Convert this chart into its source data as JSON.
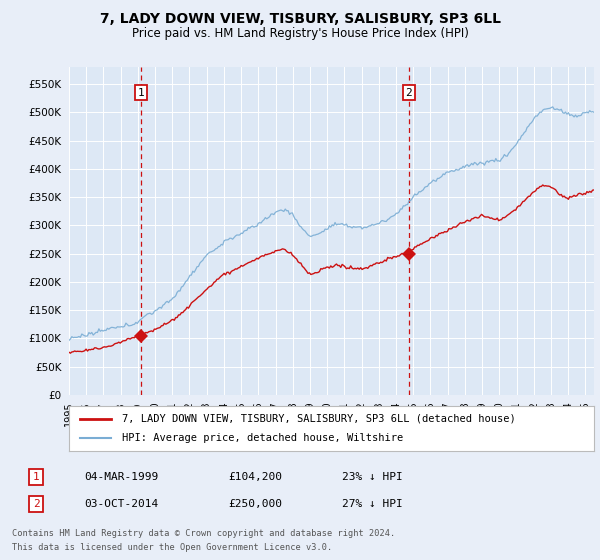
{
  "title": "7, LADY DOWN VIEW, TISBURY, SALISBURY, SP3 6LL",
  "subtitle": "Price paid vs. HM Land Registry's House Price Index (HPI)",
  "legend_line1": "7, LADY DOWN VIEW, TISBURY, SALISBURY, SP3 6LL (detached house)",
  "legend_line2": "HPI: Average price, detached house, Wiltshire",
  "annotation1_label": "1",
  "annotation1_date": "04-MAR-1999",
  "annotation1_price": "£104,200",
  "annotation1_text": "23% ↓ HPI",
  "annotation1_year": 1999.17,
  "annotation1_value": 104200,
  "annotation2_label": "2",
  "annotation2_date": "03-OCT-2014",
  "annotation2_price": "£250,000",
  "annotation2_text": "27% ↓ HPI",
  "annotation2_year": 2014.75,
  "annotation2_value": 250000,
  "footer_line1": "Contains HM Land Registry data © Crown copyright and database right 2024.",
  "footer_line2": "This data is licensed under the Open Government Licence v3.0.",
  "bg_color": "#e8eef8",
  "plot_bg_color": "#dde8f5",
  "hpi_color": "#7aadd4",
  "price_color": "#cc1111",
  "dashed_color": "#cc1111",
  "ylim_min": 0,
  "ylim_max": 580000,
  "xlim_min": 1995,
  "xlim_max": 2025.5
}
